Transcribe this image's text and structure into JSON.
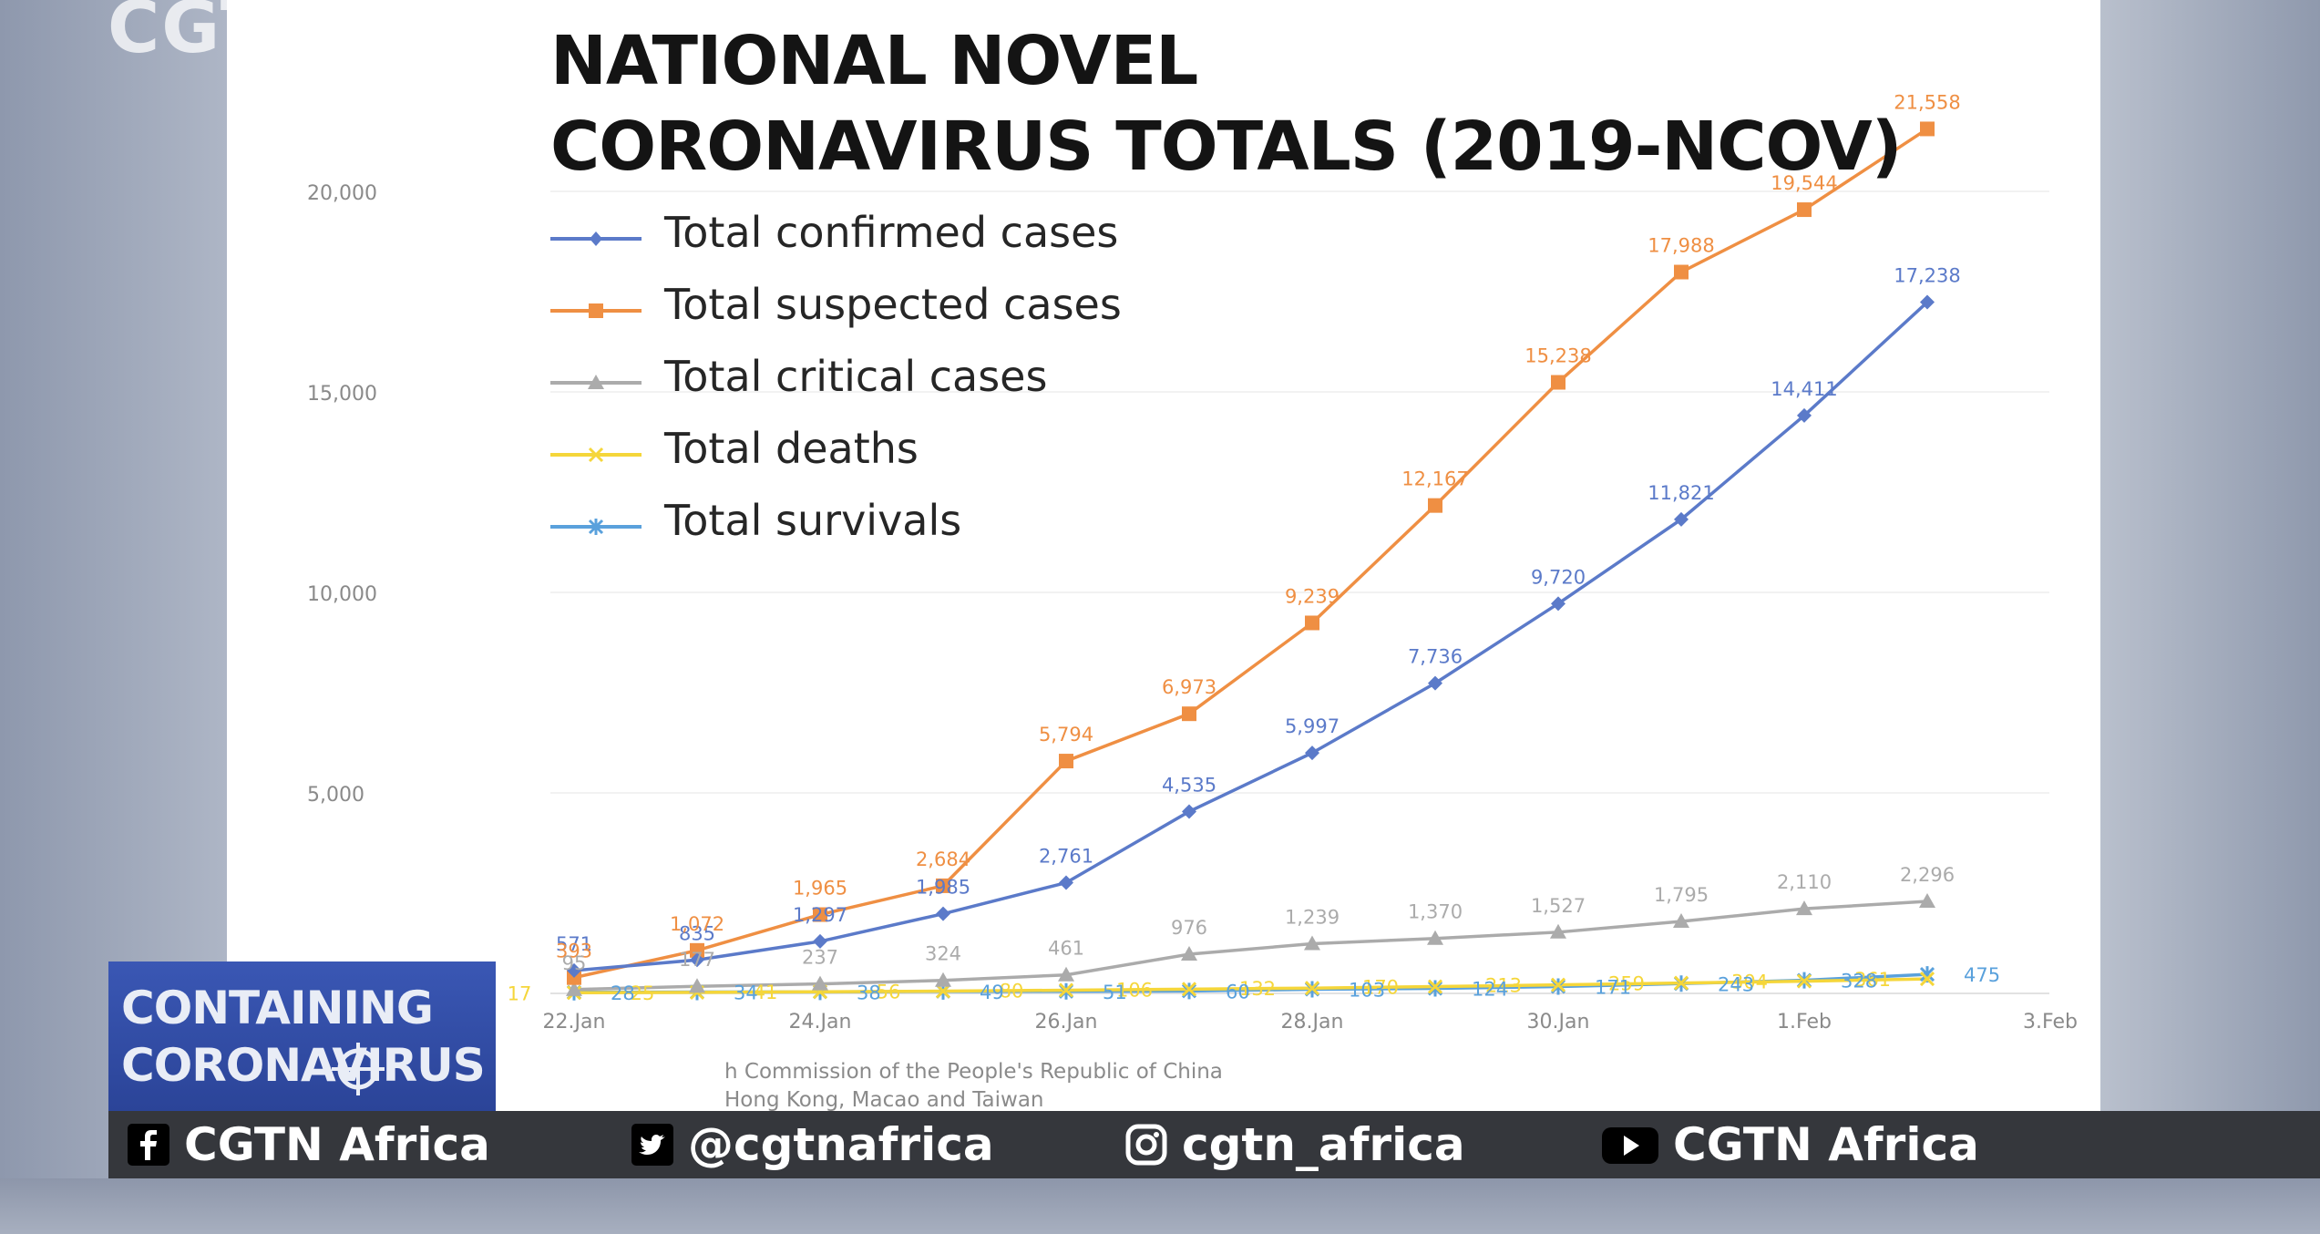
{
  "watermark": "CGT",
  "chart_data": {
    "type": "line",
    "title_lines": [
      "NATIONAL NOVEL",
      "CORONAVIRUS TOTALS (2019-NCOV)"
    ],
    "x_ticks": [
      "22.Jan",
      "24.Jan",
      "26.Jan",
      "28.Jan",
      "30.Jan",
      "1.Feb",
      "3.Feb"
    ],
    "x_dates": [
      "22 Jan",
      "23 Jan",
      "24 Jan",
      "25 Jan",
      "26 Jan",
      "27 Jan",
      "28 Jan",
      "29 Jan",
      "30 Jan",
      "31 Jan",
      "1 Feb",
      "2 Feb"
    ],
    "y_ticks": [
      "5,000",
      "10,000",
      "15,000",
      "20,000"
    ],
    "y_tick_values": [
      5000,
      10000,
      15000,
      20000
    ],
    "ylim": [
      0,
      21000
    ],
    "grid": true,
    "legend_position": "top-left",
    "series": [
      {
        "name": "Total confirmed cases",
        "color": "#5b7ac9",
        "marker": "diamond",
        "values": [
          571,
          835,
          1297,
          1985,
          2761,
          4535,
          5997,
          7736,
          9720,
          11821,
          14411,
          17238
        ],
        "labels": [
          "571",
          "835",
          "1,297",
          "1,985",
          "2,761",
          "4,535",
          "5,997",
          "7,736",
          "9,720",
          "11,821",
          "14,411",
          "17,238"
        ]
      },
      {
        "name": "Total suspected cases",
        "color": "#ef8f43",
        "marker": "square",
        "values": [
          393,
          1072,
          1965,
          2684,
          5794,
          6973,
          9239,
          12167,
          15238,
          17988,
          19544,
          21558
        ],
        "labels": [
          "393",
          "1,072",
          "1,965",
          "2,684",
          "5,794",
          "6,973",
          "9,239",
          "12,167",
          "15,238",
          "17,988",
          "19,544",
          "21,558"
        ]
      },
      {
        "name": "Total critical cases",
        "color": "#ababab",
        "marker": "triangle",
        "values": [
          95,
          177,
          237,
          324,
          461,
          976,
          1239,
          1370,
          1527,
          1795,
          2110,
          2296
        ],
        "labels": [
          "95",
          "177",
          "237",
          "324",
          "461",
          "976",
          "1,239",
          "1,370",
          "1,527",
          "1,795",
          "2,110",
          "2,296"
        ]
      },
      {
        "name": "Total deaths",
        "color": "#f5d63a",
        "marker": "x",
        "values": [
          17,
          25,
          41,
          56,
          80,
          106,
          132,
          170,
          213,
          259,
          304,
          361
        ],
        "labels": [
          "17",
          "25",
          "41",
          "56",
          "80",
          "106",
          "132",
          "170",
          "213",
          "259",
          "304",
          "361"
        ]
      },
      {
        "name": "Total survivals",
        "color": "#5aa1dc",
        "marker": "star",
        "values": [
          28,
          34,
          38,
          49,
          51,
          60,
          103,
          124,
          171,
          243,
          328,
          475
        ],
        "labels": [
          "28",
          "34",
          "38",
          "49",
          "51",
          "60",
          "103",
          "124",
          "171",
          "243",
          "328",
          "475"
        ]
      }
    ]
  },
  "source_lines": [
    "h Commission of the People's Republic of China",
    "Hong Kong, Macao and Taiwan"
  ],
  "lower_third": {
    "line1": "CONTAINING",
    "line2": "CORONAVIRUS"
  },
  "social": [
    {
      "icon": "facebook-icon",
      "text": "CGTN Africa"
    },
    {
      "icon": "twitter-icon",
      "text": "@cgtnafrica"
    },
    {
      "icon": "instagram-icon",
      "text": "cgtn_africa"
    },
    {
      "icon": "youtube-icon",
      "text": "CGTN Africa"
    }
  ]
}
